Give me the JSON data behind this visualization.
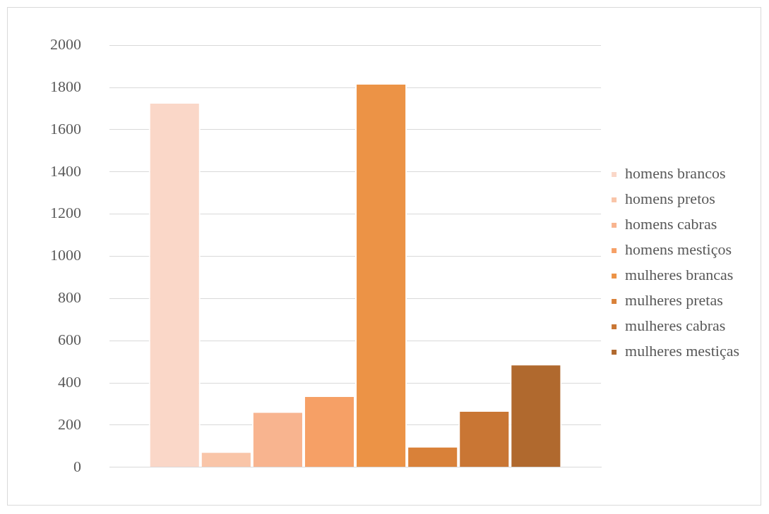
{
  "chart_data": {
    "type": "bar",
    "categories": [
      null
    ],
    "series": [
      {
        "name": "homens brancos",
        "color": "#fad7c8",
        "values": [
          1730
        ]
      },
      {
        "name": "homens pretos",
        "color": "#f9c5a8",
        "values": [
          75
        ]
      },
      {
        "name": "homens cabras",
        "color": "#f8b48f",
        "values": [
          265
        ]
      },
      {
        "name": "homens mestiços",
        "color": "#f6a066",
        "values": [
          340
        ]
      },
      {
        "name": "mulheres brancas",
        "color": "#ec9346",
        "values": [
          1820
        ]
      },
      {
        "name": "mulheres pretas",
        "color": "#d98139",
        "values": [
          100
        ]
      },
      {
        "name": "mulheres cabras",
        "color": "#c97634",
        "values": [
          270
        ]
      },
      {
        "name": "mulheres mestiças",
        "color": "#b0692e",
        "values": [
          490
        ]
      }
    ],
    "ylim": [
      0,
      2000
    ],
    "yticks": [
      0,
      200,
      400,
      600,
      800,
      1000,
      1200,
      1400,
      1600,
      1800,
      2000
    ],
    "grid": "y",
    "legend": "right"
  }
}
